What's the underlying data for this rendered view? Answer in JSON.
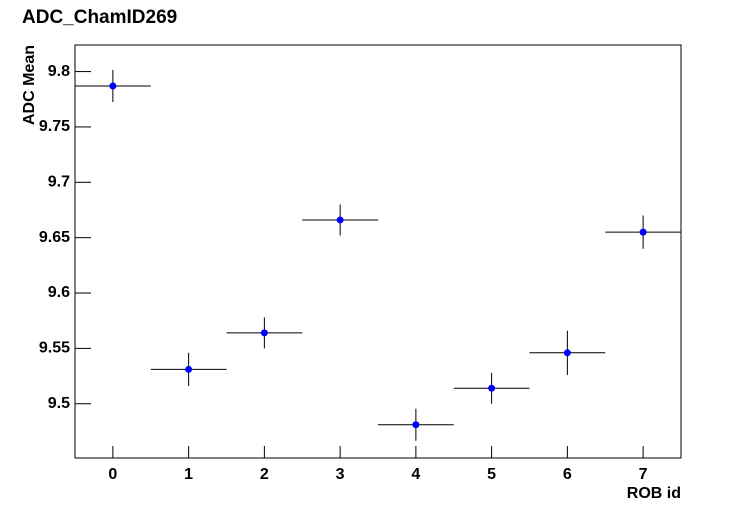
{
  "chart_data": {
    "type": "scatter",
    "title": "ADC_ChamID269",
    "x_label": "ROB id",
    "y_label": "ADC Mean",
    "x": [
      0,
      1,
      2,
      3,
      4,
      5,
      6,
      7
    ],
    "values": [
      9.787,
      9.531,
      9.564,
      9.666,
      9.481,
      9.514,
      9.546,
      9.655
    ],
    "errors": [
      0.0145,
      0.015,
      0.014,
      0.014,
      0.0145,
      0.014,
      0.02,
      0.015
    ],
    "xerr": [
      0.5,
      0.5,
      0.5,
      0.5,
      0.5,
      0.5,
      0.5,
      0.5
    ],
    "color": "#0000ff",
    "xlim": [
      -0.5,
      7.5
    ],
    "xticks": [
      0,
      1,
      2,
      3,
      4,
      5,
      6,
      7
    ],
    "ylim": [
      9.451,
      9.824
    ],
    "yticks": [
      9.5,
      9.55,
      9.6,
      9.65,
      9.7,
      9.75,
      9.8
    ]
  }
}
